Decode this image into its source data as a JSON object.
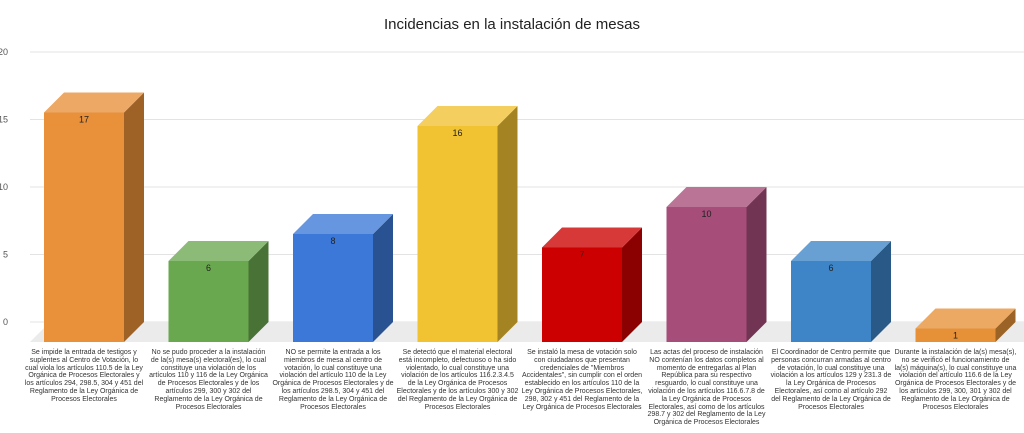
{
  "chart_data": {
    "type": "bar",
    "title": "Incidencias en la instalación de mesas",
    "xlabel": "",
    "ylabel": "",
    "ylim": [
      0,
      20
    ],
    "yticks": [
      "0",
      "5",
      "10",
      "15",
      "20"
    ],
    "grid": true,
    "style": "3d-columns",
    "categories": [
      "Se impide la entrada de testigos y suplentes al Centro de Votación, lo cual viola los artículos 110.5 de la Ley Orgánica de Procesos Electorales y los artículos 294, 298.5, 304 y 451 del Reglamento de la Ley Orgánica de Procesos Electorales",
      "No se pudo proceder a la instalación de la(s) mesa(s) electoral(es), lo cual constituye una violación de los artículos 110 y 116 de la Ley Orgánica de Procesos Electorales y de los artículos 299, 300 y 302 del Reglamento de la Ley Orgánica de Procesos Electorales",
      "NO se permite la entrada a los miembros de mesa al centro de votación, lo cual constituye una violación del artículo 110 de la Ley Orgánica de Procesos Electorales y de los artículos 298.5, 304 y 451 del Reglamento de la Ley Orgánica de Procesos Electorales",
      "Se detectó que el material electoral está incompleto, defectuoso o ha sido violentado, lo cual constituye una violación de los artículos 116.2.3.4.5 de la Ley Orgánica de Procesos Electorales y de los artículos 300 y 302 del Reglamento de la Ley Orgánica de Procesos Electorales",
      "Se instaló la mesa de votación solo con ciudadanos que presentan credenciales de \"Miembros Accidentales\", sin cumplir con el orden establecido en los artículos 110 de la Ley Orgánica de Procesos Electorales, 298, 302 y 451 del Reglamento de la Ley Orgánica de Procesos Electorales",
      "Las actas del proceso de instalación NO contenían los datos completos al momento de entregarlas al Plan República para su respectivo resguardo, lo cual constituye una violación de los artículos 116.6.7.8 de la Ley Orgánica de Procesos Electorales, así como de los artículos 298.7 y 302 del Reglamento de la Ley Orgánica de Procesos Electorales",
      "El Coordinador de Centro permite que personas concurran armadas al centro de votación, lo cual constituye una violación a los artículos 129 y 231.3 de la Ley Orgánica de Procesos Electorales, así como al artículo 292 del Reglamento de la Ley Orgánica de Procesos Electorales",
      "Durante la instalación de la(s) mesa(s), no se verificó el funcionamiento de la(s) máquina(s), lo cual constituye una violación del artículo 116.6 de la Ley Orgánica de Procesos Electorales y de los artículos 299, 300, 301 y 302 del Reglamento de la Ley Orgánica de Procesos Electorales"
    ],
    "values": [
      17,
      6,
      8,
      16,
      7,
      10,
      6,
      1
    ],
    "data_labels": [
      "17",
      "6",
      "8",
      "16",
      "7",
      "10",
      "6",
      "1"
    ],
    "colors": [
      "#e8903a",
      "#6aa84f",
      "#3c78d8",
      "#f1c232",
      "#cc0000",
      "#a64d79",
      "#3d85c6",
      "#e69138"
    ]
  }
}
